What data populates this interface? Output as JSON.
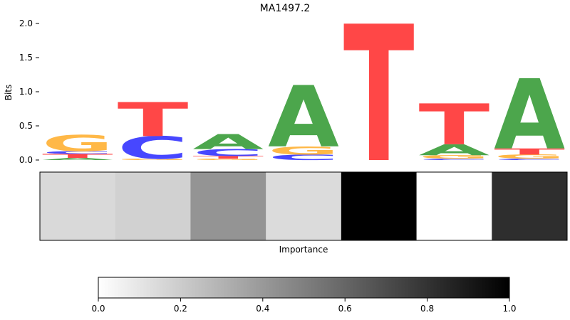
{
  "chart_data": [
    {
      "type": "sequence-logo",
      "title": "MA1497.2",
      "ylabel": "Bits",
      "ylim": [
        0,
        2.0
      ],
      "yticks": [
        "0.0",
        "0.5",
        "1.0",
        "1.5",
        "2.0"
      ],
      "colors": {
        "A": "#4ca64c",
        "C": "#4747ff",
        "G": "#ffb847",
        "T": "#ff4747"
      },
      "positions": [
        [
          {
            "base": "A",
            "bits": 0.03
          },
          {
            "base": "T",
            "bits": 0.06
          },
          {
            "base": "C",
            "bits": 0.04
          },
          {
            "base": "G",
            "bits": 0.24
          }
        ],
        [
          {
            "base": "G",
            "bits": 0.02
          },
          {
            "base": "C",
            "bits": 0.33
          },
          {
            "base": "T",
            "bits": 0.5
          }
        ],
        [
          {
            "base": "G",
            "bits": 0.02
          },
          {
            "base": "T",
            "bits": 0.04
          },
          {
            "base": "C",
            "bits": 0.1
          },
          {
            "base": "A",
            "bits": 0.22
          }
        ],
        [
          {
            "base": "C",
            "bits": 0.08
          },
          {
            "base": "G",
            "bits": 0.12
          },
          {
            "base": "A",
            "bits": 0.9
          }
        ],
        [
          {
            "base": "T",
            "bits": 2.0
          }
        ],
        [
          {
            "base": "C",
            "bits": 0.02
          },
          {
            "base": "G",
            "bits": 0.05
          },
          {
            "base": "A",
            "bits": 0.16
          },
          {
            "base": "T",
            "bits": 0.6
          }
        ],
        [
          {
            "base": "C",
            "bits": 0.02
          },
          {
            "base": "G",
            "bits": 0.06
          },
          {
            "base": "T",
            "bits": 0.09
          },
          {
            "base": "A",
            "bits": 1.03
          }
        ]
      ]
    },
    {
      "type": "heatmap",
      "xlabel": "Importance",
      "values": [
        0.15,
        0.18,
        0.42,
        0.14,
        1.0,
        0.0,
        0.82
      ]
    },
    {
      "type": "colorbar",
      "range": [
        0.0,
        1.0
      ],
      "ticks": [
        "0.0",
        "0.2",
        "0.4",
        "0.6",
        "0.8",
        "1.0"
      ]
    }
  ]
}
